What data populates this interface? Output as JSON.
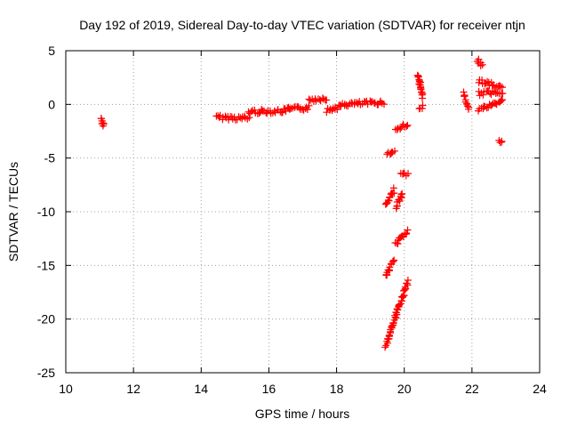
{
  "chart_data": {
    "type": "scatter",
    "title": "Day 192 of 2019, Sidereal Day-to-day VTEC variation (SDTVAR) for receiver ntjn",
    "xlabel": "GPS time / hours",
    "ylabel": "SDTVAR / TECUs",
    "xlim": [
      10,
      24
    ],
    "ylim": [
      -25,
      5
    ],
    "xticks": [
      10,
      12,
      14,
      16,
      18,
      20,
      22,
      24
    ],
    "yticks": [
      -25,
      -20,
      -15,
      -10,
      -5,
      0,
      5
    ],
    "grid": true,
    "marker": "+",
    "series": [
      {
        "name": "SDTVAR",
        "color": "#ff0000",
        "segments": [
          {
            "x0": 11.05,
            "x1": 11.12,
            "y0": -1.3,
            "y1": -2.0
          },
          {
            "x0": 14.45,
            "x1": 15.4,
            "y0": -1.2,
            "y1": -1.3
          },
          {
            "x0": 15.4,
            "x1": 16.5,
            "y0": -0.7,
            "y1": -0.6
          },
          {
            "x0": 16.5,
            "x1": 17.2,
            "y0": -0.5,
            "y1": -0.3
          },
          {
            "x0": 17.2,
            "x1": 17.7,
            "y0": 0.4,
            "y1": 0.6
          },
          {
            "x0": 17.7,
            "x1": 18.3,
            "y0": -0.6,
            "y1": 0.0
          },
          {
            "x0": 18.3,
            "x1": 19.4,
            "y0": 0.0,
            "y1": 0.2
          },
          {
            "x0": 19.5,
            "x1": 19.7,
            "y0": -4.7,
            "y1": -4.3
          },
          {
            "x0": 19.75,
            "x1": 20.1,
            "y0": -2.4,
            "y1": -1.8
          },
          {
            "x0": 19.9,
            "x1": 20.1,
            "y0": -6.6,
            "y1": -6.4
          },
          {
            "x0": 19.45,
            "x1": 19.7,
            "y0": -9.5,
            "y1": -8.0
          },
          {
            "x0": 19.75,
            "x1": 19.95,
            "y0": -9.5,
            "y1": -8.4
          },
          {
            "x0": 19.75,
            "x1": 20.1,
            "y0": -13.0,
            "y1": -11.8
          },
          {
            "x0": 19.45,
            "x1": 19.7,
            "y0": -16.0,
            "y1": -14.5
          },
          {
            "x0": 19.45,
            "x1": 20.1,
            "y0": -22.5,
            "y1": -16.5
          },
          {
            "x0": 20.4,
            "x1": 20.55,
            "y0": 2.8,
            "y1": 0.6
          },
          {
            "x0": 20.45,
            "x1": 20.55,
            "y0": -0.4,
            "y1": -0.1
          },
          {
            "x0": 21.75,
            "x1": 21.9,
            "y0": 1.0,
            "y1": -0.3
          },
          {
            "x0": 22.15,
            "x1": 22.3,
            "y0": 4.1,
            "y1": 3.6
          },
          {
            "x0": 22.2,
            "x1": 22.9,
            "y0": 2.2,
            "y1": 1.5
          },
          {
            "x0": 22.2,
            "x1": 22.9,
            "y0": 1.0,
            "y1": 1.2
          },
          {
            "x0": 22.2,
            "x1": 22.9,
            "y0": -0.5,
            "y1": 0.3
          },
          {
            "x0": 22.8,
            "x1": 22.9,
            "y0": -3.4,
            "y1": -3.3
          }
        ]
      }
    ]
  }
}
